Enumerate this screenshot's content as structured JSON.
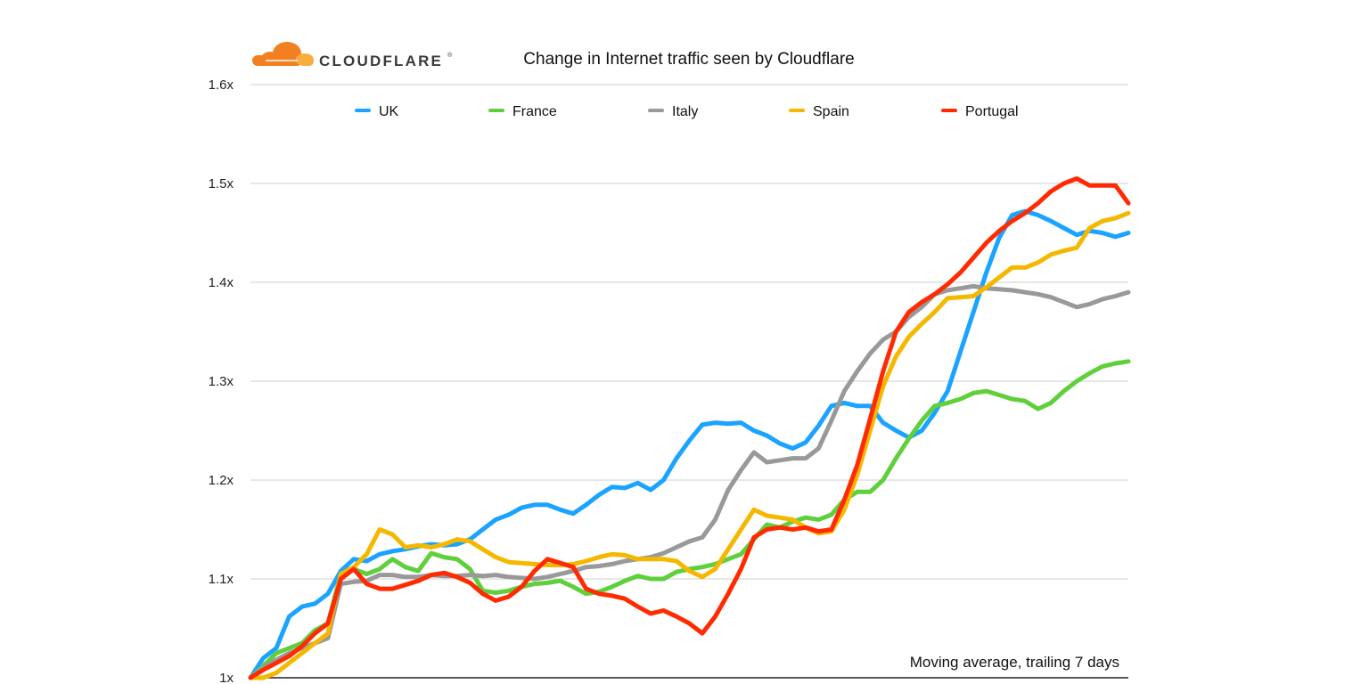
{
  "logo": {
    "text": "CLOUDFLARE",
    "mark": "®"
  },
  "chart_data": {
    "type": "line",
    "title": "Change in Internet traffic seen by Cloudflare",
    "annotation": "Moving average, trailing 7 days",
    "xlabel": "",
    "ylabel": "",
    "ylim": [
      1.0,
      1.6
    ],
    "yticks": [
      {
        "value": 1.0,
        "label": "1x"
      },
      {
        "value": 1.1,
        "label": "1.1x"
      },
      {
        "value": 1.2,
        "label": "1.2x"
      },
      {
        "value": 1.3,
        "label": "1.3x"
      },
      {
        "value": 1.4,
        "label": "1.4x"
      },
      {
        "value": 1.5,
        "label": "1.5x"
      },
      {
        "value": 1.6,
        "label": "1.6x"
      }
    ],
    "grid": true,
    "legend_position": "top",
    "series": [
      {
        "name": "UK",
        "color": "#1aa3ff",
        "values": [
          1.0,
          1.02,
          1.03,
          1.062,
          1.072,
          1.075,
          1.085,
          1.108,
          1.12,
          1.118,
          1.125,
          1.128,
          1.13,
          1.133,
          1.135,
          1.134,
          1.135,
          1.14,
          1.15,
          1.16,
          1.165,
          1.172,
          1.175,
          1.175,
          1.17,
          1.166,
          1.175,
          1.185,
          1.193,
          1.192,
          1.197,
          1.19,
          1.2,
          1.222,
          1.24,
          1.256,
          1.258,
          1.257,
          1.258,
          1.25,
          1.245,
          1.237,
          1.232,
          1.238,
          1.255,
          1.275,
          1.278,
          1.275,
          1.275,
          1.258,
          1.25,
          1.243,
          1.25,
          1.268,
          1.29,
          1.33,
          1.37,
          1.41,
          1.445,
          1.468,
          1.472,
          1.468,
          1.462,
          1.455,
          1.448,
          1.452,
          1.45,
          1.446,
          1.45
        ]
      },
      {
        "name": "France",
        "color": "#5fcf3c",
        "values": [
          1.0,
          1.012,
          1.025,
          1.03,
          1.035,
          1.048,
          1.055,
          1.105,
          1.11,
          1.105,
          1.11,
          1.12,
          1.112,
          1.108,
          1.126,
          1.122,
          1.12,
          1.11,
          1.088,
          1.086,
          1.088,
          1.092,
          1.095,
          1.096,
          1.098,
          1.092,
          1.085,
          1.087,
          1.092,
          1.098,
          1.103,
          1.1,
          1.1,
          1.107,
          1.11,
          1.112,
          1.115,
          1.12,
          1.125,
          1.14,
          1.155,
          1.152,
          1.158,
          1.162,
          1.16,
          1.165,
          1.18,
          1.188,
          1.188,
          1.2,
          1.222,
          1.242,
          1.26,
          1.275,
          1.278,
          1.282,
          1.288,
          1.29,
          1.286,
          1.282,
          1.28,
          1.272,
          1.278,
          1.29,
          1.3,
          1.308,
          1.315,
          1.318,
          1.32
        ]
      },
      {
        "name": "Italy",
        "color": "#999999",
        "values": [
          1.0,
          1.01,
          1.018,
          1.025,
          1.03,
          1.035,
          1.04,
          1.095,
          1.097,
          1.098,
          1.104,
          1.104,
          1.102,
          1.102,
          1.104,
          1.103,
          1.103,
          1.104,
          1.103,
          1.104,
          1.102,
          1.101,
          1.1,
          1.102,
          1.105,
          1.108,
          1.112,
          1.113,
          1.115,
          1.118,
          1.12,
          1.122,
          1.126,
          1.132,
          1.138,
          1.142,
          1.16,
          1.19,
          1.21,
          1.228,
          1.218,
          1.22,
          1.222,
          1.222,
          1.232,
          1.26,
          1.29,
          1.31,
          1.328,
          1.342,
          1.35,
          1.365,
          1.375,
          1.388,
          1.392,
          1.394,
          1.396,
          1.394,
          1.393,
          1.392,
          1.39,
          1.388,
          1.385,
          1.38,
          1.375,
          1.378,
          1.383,
          1.386,
          1.39
        ]
      },
      {
        "name": "Spain",
        "color": "#f5b800",
        "values": [
          1.0,
          1.0,
          1.005,
          1.015,
          1.025,
          1.035,
          1.045,
          1.105,
          1.112,
          1.125,
          1.15,
          1.145,
          1.132,
          1.134,
          1.132,
          1.135,
          1.14,
          1.138,
          1.13,
          1.122,
          1.117,
          1.116,
          1.115,
          1.114,
          1.114,
          1.115,
          1.118,
          1.122,
          1.125,
          1.124,
          1.12,
          1.12,
          1.12,
          1.118,
          1.108,
          1.102,
          1.11,
          1.13,
          1.15,
          1.17,
          1.164,
          1.162,
          1.16,
          1.152,
          1.146,
          1.148,
          1.17,
          1.205,
          1.25,
          1.295,
          1.325,
          1.345,
          1.358,
          1.37,
          1.384,
          1.385,
          1.386,
          1.395,
          1.405,
          1.415,
          1.415,
          1.42,
          1.428,
          1.432,
          1.435,
          1.455,
          1.462,
          1.465,
          1.47
        ]
      },
      {
        "name": "Portugal",
        "color": "#ff2a00",
        "values": [
          1.0,
          1.008,
          1.015,
          1.022,
          1.032,
          1.045,
          1.055,
          1.1,
          1.11,
          1.095,
          1.09,
          1.09,
          1.094,
          1.098,
          1.104,
          1.106,
          1.102,
          1.096,
          1.085,
          1.078,
          1.082,
          1.092,
          1.108,
          1.12,
          1.116,
          1.112,
          1.09,
          1.085,
          1.083,
          1.08,
          1.072,
          1.065,
          1.068,
          1.062,
          1.055,
          1.045,
          1.062,
          1.085,
          1.11,
          1.142,
          1.15,
          1.152,
          1.15,
          1.152,
          1.148,
          1.15,
          1.18,
          1.215,
          1.262,
          1.31,
          1.35,
          1.37,
          1.38,
          1.388,
          1.398,
          1.41,
          1.425,
          1.44,
          1.452,
          1.462,
          1.47,
          1.48,
          1.492,
          1.5,
          1.505,
          1.498,
          1.498,
          1.498,
          1.48
        ]
      }
    ]
  }
}
